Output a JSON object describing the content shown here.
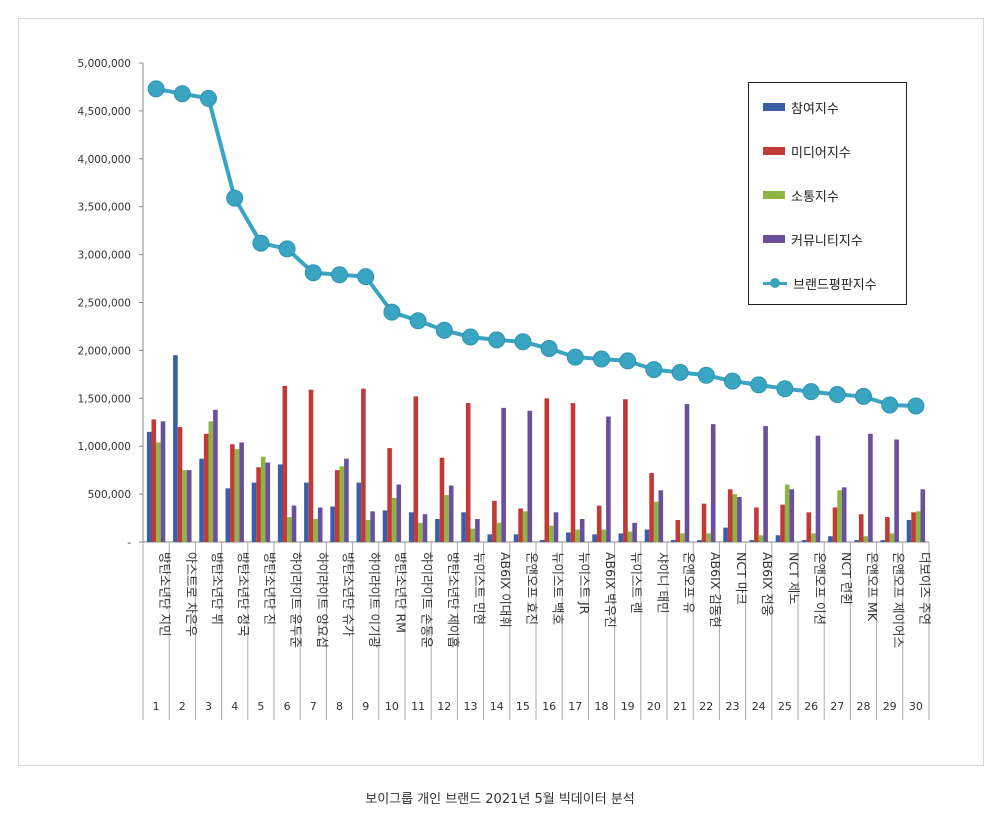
{
  "caption": "보이그룹 개인 브랜드 2021년 5월 빅데이터 분석",
  "colors": {
    "participation": "#3c5ea8",
    "media": "#c13a36",
    "communication": "#8fb446",
    "community": "#6a4f9c",
    "brand": "#3aa5c2"
  },
  "chart_data": {
    "type": "bar",
    "ylim": [
      0,
      5000000
    ],
    "yticks": [
      "-",
      "500,000",
      "1,000,000",
      "1,500,000",
      "2,000,000",
      "2,500,000",
      "3,000,000",
      "3,500,000",
      "4,000,000",
      "4,500,000",
      "5,000,000"
    ],
    "legend_position": "top-right",
    "grid": false,
    "categories": [
      "방탄소년단 지민",
      "아스트로 차은우",
      "방탄소년단 뷔",
      "방탄소년단 정국",
      "방탄소년단 진",
      "하이라이트 윤두준",
      "하이라이트 양요섭",
      "방탄소년단 슈가",
      "하이라이트 이기광",
      "방탄소년단 RM",
      "하이라이트 손동운",
      "방탄소년단 제이홉",
      "뉴이스트 민현",
      "AB6IX 이대휘",
      "온앤오프 효진",
      "뉴이스트 백호",
      "뉴이스트 JR",
      "AB6IX 박우진",
      "뉴이스트 렌",
      "샤이니 태민",
      "온앤오프 유",
      "AB6IX 김동현",
      "NCT 마크",
      "AB6IX 전웅",
      "NCT 제노",
      "온앤오프 이션",
      "NCT 런쥔",
      "온앤오프 MK",
      "온앤오프 제이어스",
      "더보이즈 주연"
    ],
    "ranks": [
      "1",
      "2",
      "3",
      "4",
      "5",
      "6",
      "7",
      "8",
      "9",
      "10",
      "11",
      "12",
      "13",
      "14",
      "15",
      "16",
      "17",
      "18",
      "19",
      "20",
      "21",
      "22",
      "23",
      "24",
      "25",
      "26",
      "27",
      "28",
      "29",
      "30"
    ],
    "series": [
      {
        "name": "참여지수",
        "type": "bar",
        "values": [
          1150000,
          1950000,
          870000,
          560000,
          620000,
          810000,
          620000,
          370000,
          620000,
          330000,
          310000,
          240000,
          310000,
          80000,
          80000,
          20000,
          100000,
          80000,
          90000,
          130000,
          20000,
          20000,
          150000,
          20000,
          70000,
          20000,
          60000,
          20000,
          20000,
          230000
        ]
      },
      {
        "name": "미디어지수",
        "type": "bar",
        "values": [
          1280000,
          1200000,
          1130000,
          1020000,
          780000,
          1630000,
          1590000,
          750000,
          1600000,
          980000,
          1520000,
          880000,
          1450000,
          430000,
          350000,
          1500000,
          1450000,
          380000,
          1490000,
          720000,
          230000,
          400000,
          550000,
          360000,
          390000,
          310000,
          360000,
          290000,
          260000,
          310000
        ]
      },
      {
        "name": "소통지수",
        "type": "bar",
        "values": [
          1040000,
          750000,
          1260000,
          970000,
          890000,
          260000,
          240000,
          790000,
          230000,
          460000,
          200000,
          490000,
          140000,
          200000,
          320000,
          170000,
          130000,
          130000,
          110000,
          420000,
          90000,
          90000,
          500000,
          70000,
          600000,
          90000,
          540000,
          60000,
          90000,
          320000
        ]
      },
      {
        "name": "커뮤니티지수",
        "type": "bar",
        "values": [
          1260000,
          750000,
          1380000,
          1040000,
          830000,
          380000,
          360000,
          870000,
          320000,
          600000,
          290000,
          590000,
          240000,
          1400000,
          1370000,
          310000,
          240000,
          1310000,
          200000,
          540000,
          1440000,
          1230000,
          470000,
          1210000,
          550000,
          1110000,
          570000,
          1130000,
          1070000,
          550000
        ]
      },
      {
        "name": "브랜드평판지수",
        "type": "line",
        "values": [
          4730000,
          4680000,
          4630000,
          3590000,
          3120000,
          3060000,
          2810000,
          2790000,
          2770000,
          2400000,
          2310000,
          2210000,
          2140000,
          2110000,
          2090000,
          2020000,
          1930000,
          1910000,
          1890000,
          1800000,
          1770000,
          1740000,
          1680000,
          1640000,
          1600000,
          1570000,
          1540000,
          1520000,
          1430000,
          1420000
        ]
      }
    ]
  }
}
